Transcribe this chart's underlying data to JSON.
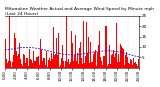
{
  "title": "Milwaukee Weather Actual and Average Wind Speed by Minute mph (Last 24 Hours)",
  "n_points": 1440,
  "bar_color": "#ff0000",
  "line_color": "#0000ff",
  "background_color": "#ffffff",
  "plot_bg_color": "#ffffff",
  "grid_color": "#aaaaaa",
  "ylim": [
    0,
    25
  ],
  "yticks": [
    5,
    10,
    15,
    20,
    25
  ],
  "ylabel_fontsize": 3.0,
  "xlabel_fontsize": 2.8,
  "title_fontsize": 3.2,
  "seed": 42
}
